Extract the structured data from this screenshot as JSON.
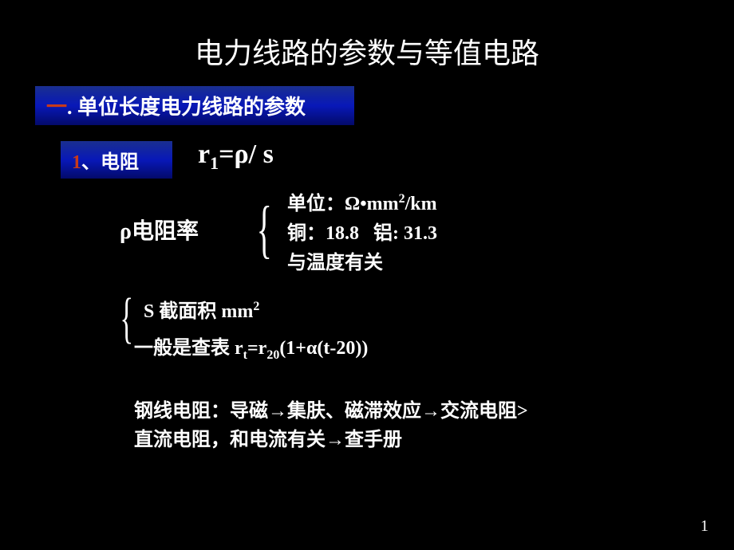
{
  "title": "电力线路的参数与等值电路",
  "section1": {
    "num": "一",
    "text": ". 单位长度电力线路的参数"
  },
  "section2": {
    "num": "1",
    "text": "、电阻"
  },
  "formula": {
    "r": "r",
    "sub": "1",
    "eq": "=ρ/ s"
  },
  "rho_label": "ρ电阻率",
  "details": {
    "unit_label": "单位：Ω•mm",
    "unit_sup": "2",
    "unit_tail": "/km",
    "copper_label": "铜：18.8",
    "al_label": "铝: 31.3",
    "temp": "与温度有关"
  },
  "s_line": {
    "s": "S",
    "gap": "   ",
    "label": "截面积  mm",
    "sup": "2"
  },
  "lookup": {
    "pre": "一般是查表  r",
    "sub1": "t",
    "mid": "=r",
    "sub2": "20",
    "post": "(1+α(t-20))"
  },
  "steel": {
    "l1a": "钢线电阻：导磁",
    "arrow": "→",
    "l1b": "集肤、磁滞效应",
    "l1c": "交流电阻>",
    "l2a": "直流电阻，和电流有关",
    "l2b": "查手册"
  },
  "page": "1"
}
